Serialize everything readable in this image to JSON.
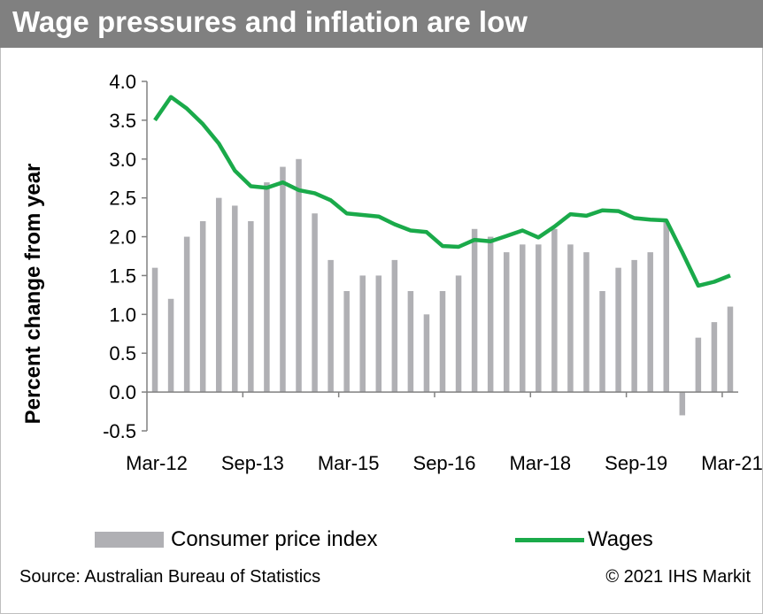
{
  "title": "Wage pressures and inflation are low",
  "source": "Source: Australian Bureau of Statistics",
  "copyright": "© 2021 IHS Markit",
  "colors": {
    "bar": "#b0b0b4",
    "line": "#1aaa4a",
    "header": "#808080"
  },
  "chart_data": {
    "type": "bar+line",
    "ylabel": "Percent change from year",
    "ylim": [
      -0.5,
      4.0
    ],
    "yticks": [
      "4.0",
      "3.5",
      "3.0",
      "2.5",
      "2.0",
      "1.5",
      "1.0",
      "0.5",
      "0.0",
      "-0.5"
    ],
    "xtick_labels": [
      "Mar-12",
      "Sep-13",
      "Mar-15",
      "Sep-16",
      "Mar-18",
      "Sep-19",
      "Mar-21"
    ],
    "categories": [
      "Mar-12",
      "Jun-12",
      "Sep-12",
      "Dec-12",
      "Mar-13",
      "Jun-13",
      "Sep-13",
      "Dec-13",
      "Mar-14",
      "Jun-14",
      "Sep-14",
      "Dec-14",
      "Mar-15",
      "Jun-15",
      "Sep-15",
      "Dec-15",
      "Mar-16",
      "Jun-16",
      "Sep-16",
      "Dec-16",
      "Mar-17",
      "Jun-17",
      "Sep-17",
      "Dec-17",
      "Mar-18",
      "Jun-18",
      "Sep-18",
      "Dec-18",
      "Mar-19",
      "Jun-19",
      "Sep-19",
      "Dec-19",
      "Mar-20",
      "Jun-20",
      "Sep-20",
      "Dec-20",
      "Mar-21"
    ],
    "series": [
      {
        "name": "Consumer price index",
        "kind": "bar",
        "values": [
          1.6,
          1.2,
          2.0,
          2.2,
          2.5,
          2.4,
          2.2,
          2.7,
          2.9,
          3.0,
          2.3,
          1.7,
          1.3,
          1.5,
          1.5,
          1.7,
          1.3,
          1.0,
          1.3,
          1.5,
          2.1,
          2.0,
          1.8,
          1.9,
          1.9,
          2.1,
          1.9,
          1.8,
          1.3,
          1.6,
          1.7,
          1.8,
          2.2,
          -0.3,
          0.7,
          0.9,
          1.1
        ]
      },
      {
        "name": "Wages",
        "kind": "line",
        "values": [
          3.5,
          3.8,
          3.65,
          3.45,
          3.2,
          2.85,
          2.65,
          2.63,
          2.7,
          2.6,
          2.56,
          2.47,
          2.3,
          2.28,
          2.26,
          2.16,
          2.08,
          2.06,
          1.88,
          1.87,
          1.96,
          1.94,
          2.01,
          2.08,
          1.99,
          2.13,
          2.29,
          2.27,
          2.34,
          2.33,
          2.24,
          2.22,
          2.21,
          1.8,
          1.37,
          1.42,
          1.5
        ]
      }
    ],
    "legend": [
      "Consumer price index",
      "Wages"
    ],
    "legend_position": "bottom"
  }
}
